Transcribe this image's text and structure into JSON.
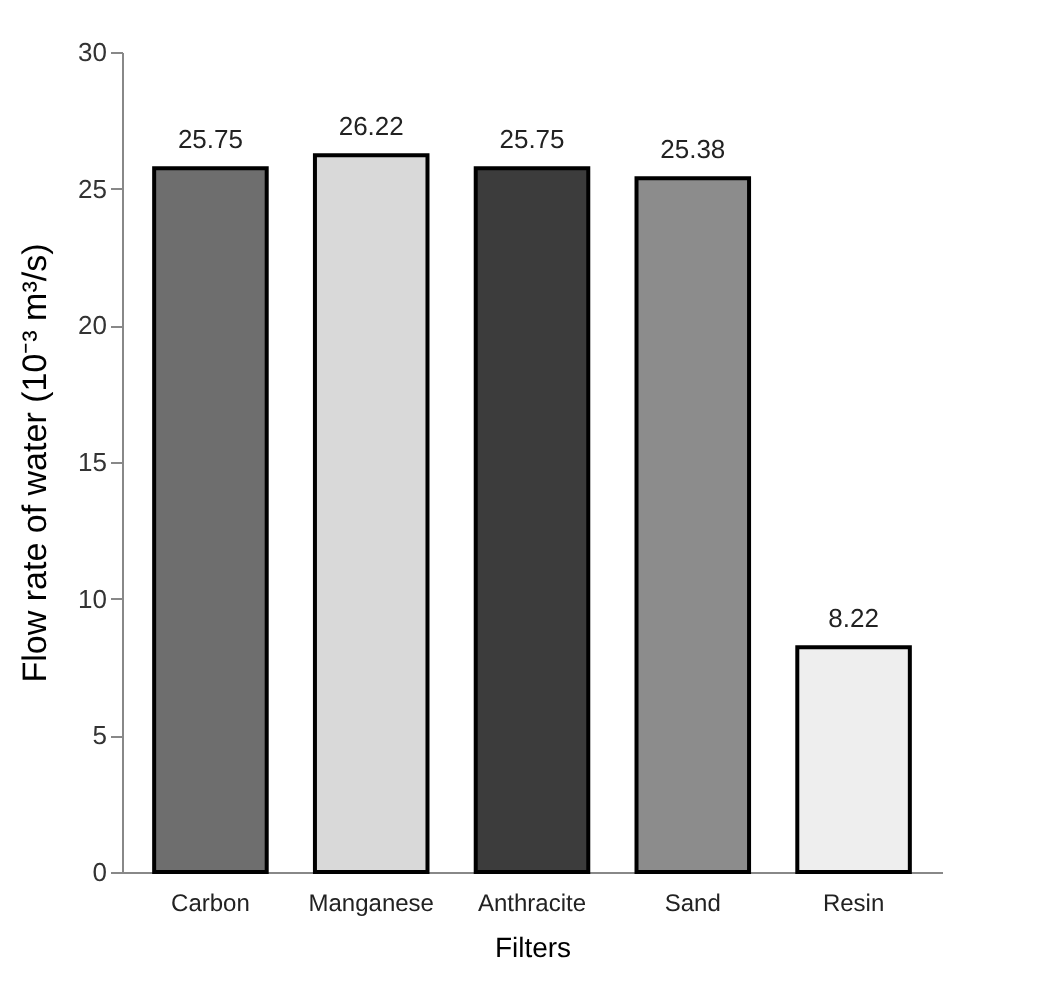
{
  "chart_data": {
    "type": "bar",
    "xlabel": "Filters",
    "ylabel": "Flow rate of water (10⁻³ m³/s)",
    "categories": [
      "Carbon",
      "Manganese",
      "Anthracite",
      "Sand",
      "Resin"
    ],
    "values": [
      25.75,
      26.22,
      25.75,
      25.38,
      8.22
    ],
    "colors": [
      "#6e6e6e",
      "#d9d9d9",
      "#3c3c3c",
      "#8c8c8c",
      "#eeeeee"
    ],
    "ylim": [
      0,
      30
    ],
    "yticks": [
      0,
      5,
      10,
      15,
      20,
      25,
      30
    ],
    "grid": false,
    "data_labels": true
  }
}
